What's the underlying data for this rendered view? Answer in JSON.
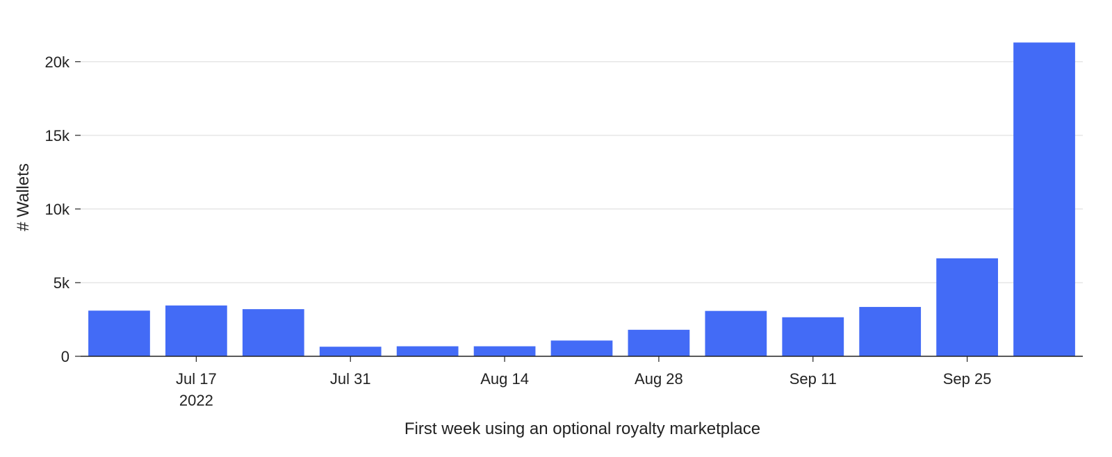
{
  "chart_data": {
    "type": "bar",
    "xlabel": "First week using an optional royalty marketplace",
    "ylabel": "# Wallets",
    "ylim": [
      0,
      22300
    ],
    "yticks": [
      {
        "value": 0,
        "label": "0"
      },
      {
        "value": 5000,
        "label": "5k"
      },
      {
        "value": 10000,
        "label": "10k"
      },
      {
        "value": 15000,
        "label": "15k"
      },
      {
        "value": 20000,
        "label": "20k"
      }
    ],
    "xticks": [
      {
        "date": "2022-07-17",
        "label": "Jul 17",
        "sublabel": "2022"
      },
      {
        "date": "2022-07-31",
        "label": "Jul 31",
        "sublabel": ""
      },
      {
        "date": "2022-08-14",
        "label": "Aug 14",
        "sublabel": ""
      },
      {
        "date": "2022-08-28",
        "label": "Aug 28",
        "sublabel": ""
      },
      {
        "date": "2022-09-11",
        "label": "Sep 11",
        "sublabel": ""
      },
      {
        "date": "2022-09-25",
        "label": "Sep 25",
        "sublabel": ""
      }
    ],
    "x": [
      "2022-07-10",
      "2022-07-17",
      "2022-07-24",
      "2022-07-31",
      "2022-08-07",
      "2022-08-14",
      "2022-08-21",
      "2022-08-28",
      "2022-09-04",
      "2022-09-11",
      "2022-09-18",
      "2022-09-25",
      "2022-10-02"
    ],
    "values": [
      3100,
      3450,
      3200,
      650,
      680,
      680,
      1070,
      1800,
      3080,
      2650,
      3350,
      6650,
      21300
    ],
    "bar_color": "#436bf6",
    "grid": true,
    "legend": "none"
  }
}
